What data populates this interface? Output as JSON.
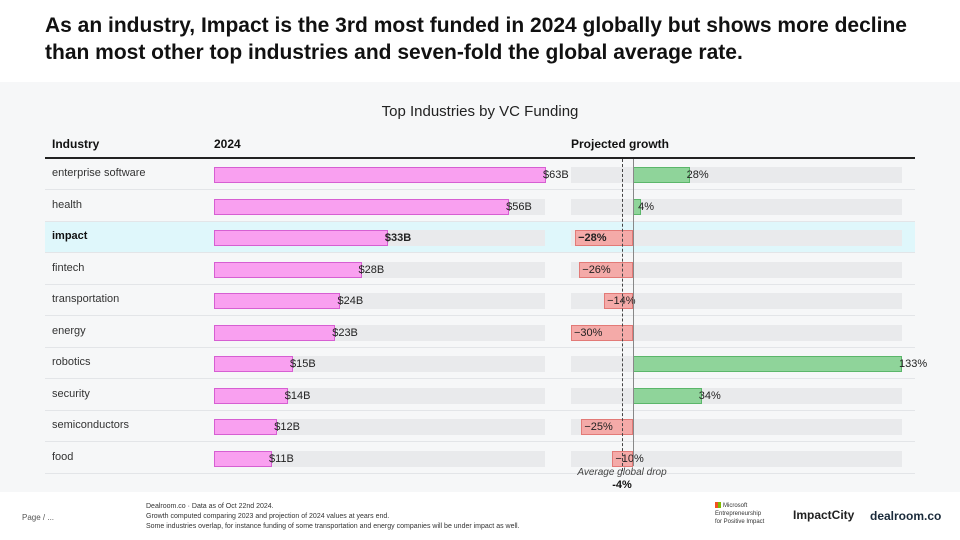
{
  "headline": "As an industry, Impact is the 3rd most funded in 2024 globally but shows more decline than most other top industries and seven-fold the global average rate.",
  "chart_data": {
    "type": "bar",
    "title": "Top Industries by VC Funding",
    "columns": {
      "industry": "Industry",
      "funding": "2024",
      "growth": "Projected growth"
    },
    "categories": [
      "enterprise software",
      "health",
      "impact",
      "fintech",
      "transportation",
      "energy",
      "robotics",
      "security",
      "semiconductors",
      "food"
    ],
    "highlight": "impact",
    "series": [
      {
        "name": "2024",
        "unit": "$B",
        "values": [
          63,
          56,
          33,
          28,
          24,
          23,
          15,
          14,
          12,
          11
        ],
        "labels": [
          "$63B",
          "$56B",
          "$33B",
          "$28B",
          "$24B",
          "$23B",
          "$15B",
          "$14B",
          "$12B",
          "$11B"
        ]
      },
      {
        "name": "Projected growth",
        "unit": "%",
        "values": [
          28,
          4,
          -28,
          -26,
          -14,
          -30,
          133,
          34,
          -25,
          -10
        ],
        "labels": [
          "28%",
          "4%",
          "−28%",
          "−26%",
          "−14%",
          "−30%",
          "133%",
          "34%",
          "−25%",
          "−10%"
        ]
      }
    ],
    "funding_range": [
      0,
      63
    ],
    "growth_range": [
      -30,
      133
    ],
    "average_growth": -4,
    "average_label": "Average global drop",
    "average_value_label": "-4%"
  },
  "colors": {
    "funding_bar": "#f9a0f0",
    "positive_growth": "#8fd49a",
    "negative_growth": "#f4aaa8",
    "highlight_row": "#dff7fb"
  },
  "footer": {
    "page": "Page / ...",
    "notes": [
      "Dealroom.co · Data as of Oct 22nd 2024.",
      "Growth computed comparing 2023 and projection of 2024 values at years end.",
      "Some industries overlap, for instance funding of some transportation and energy companies will be under impact as well."
    ],
    "logos": {
      "microsoft_brand": "Microsoft",
      "microsoft_program_line1": "Entrepreneurship",
      "microsoft_program_line2": "for Positive Impact",
      "impactcity": "ImpactCity",
      "dealroom": "dealroom.co"
    }
  }
}
